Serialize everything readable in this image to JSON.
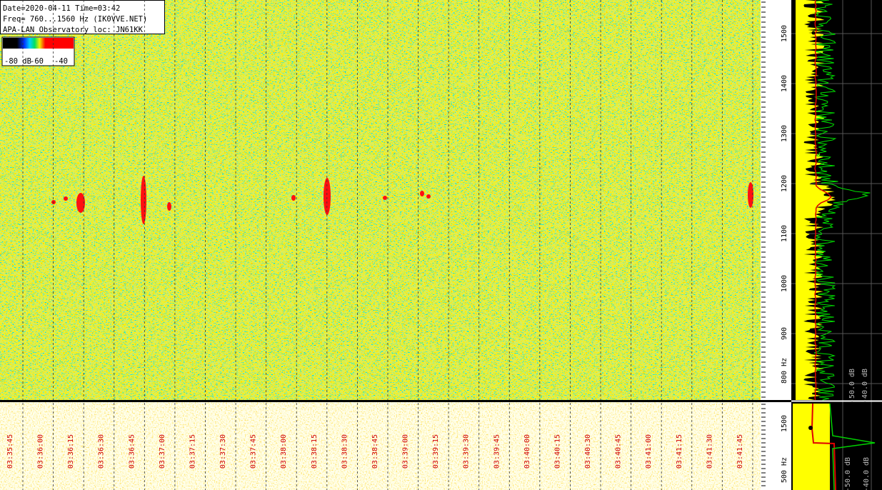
{
  "info": {
    "lines": [
      "Date=2020-04-11 Time=03:42",
      "Freq= 760...1560 Hz (IK0VVE.NET)",
      "APA-LAN Observatory loc: JN61KK"
    ]
  },
  "colorbar": {
    "labels": [
      "-80 dB",
      "-60",
      "-40"
    ]
  },
  "frequency_scale": {
    "labels": [
      "1500",
      "1400",
      "1300",
      "1200",
      "1100",
      "1000",
      "900",
      "800 Hz"
    ]
  },
  "spectrum_scale": {
    "labels": [
      "-50.0 dB",
      "-40.0 dB"
    ]
  },
  "time_axis": {
    "labels": [
      "03:35:45",
      "03:36:00",
      "03:36:15",
      "03:36:30",
      "03:36:45",
      "03:37:00",
      "03:37:15",
      "03:37:30",
      "03:37:45",
      "03:38:00",
      "03:38:15",
      "03:38:30",
      "03:38:45",
      "03:39:00",
      "03:39:15",
      "03:39:30",
      "03:39:45",
      "03:40:00",
      "03:40:15",
      "03:40:30",
      "03:40:45",
      "03:41:00",
      "03:41:15",
      "03:41:30",
      "03:41:45"
    ]
  },
  "lower_frequency_scale": {
    "labels": [
      "1500",
      "500 Hz"
    ]
  },
  "lower_spectrum_scale": {
    "labels": [
      "-50.0 dB",
      "-40.0 dB"
    ]
  }
}
